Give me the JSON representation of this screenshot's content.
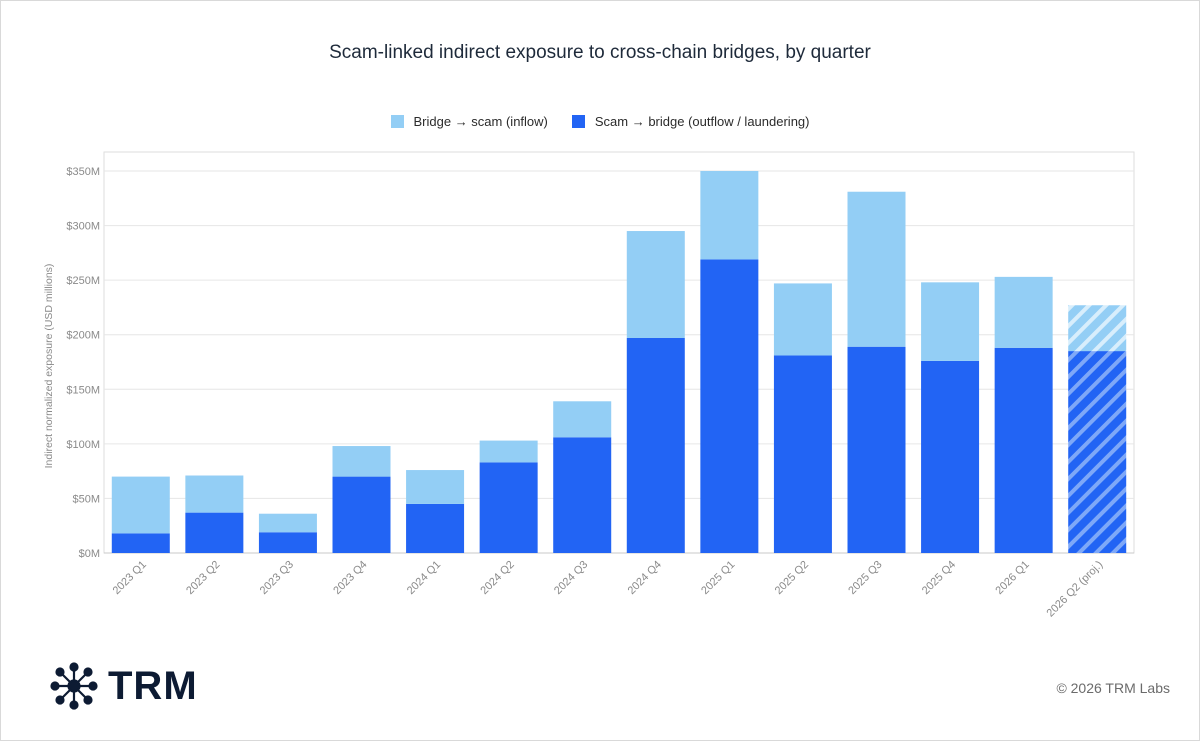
{
  "title": "Scam-linked indirect exposure to cross-chain bridges, by quarter",
  "footer": {
    "copyright": "© 2026 TRM Labs",
    "logo_text": "TRM"
  },
  "colors": {
    "inflow": "#93CEF5",
    "outflow": "#2264F4",
    "grid": "#e6e6e6",
    "axis": "#c8c8c8",
    "text": "#8a8a8a"
  },
  "chart_data": {
    "type": "bar",
    "stacked": true,
    "title": "Scam-linked indirect exposure to cross-chain bridges, by quarter",
    "xlabel": "",
    "ylabel": "Indirect normalized exposure (USD millions)",
    "ylim": [
      0,
      350
    ],
    "yticks": [
      "$0M",
      "$50M",
      "$100M",
      "$150M",
      "$200M",
      "$250M",
      "$300M",
      "$350M"
    ],
    "grid": true,
    "legend": "top-center",
    "categories": [
      "2023 Q1",
      "2023 Q2",
      "2023 Q3",
      "2023 Q4",
      "2024 Q1",
      "2024 Q2",
      "2024 Q3",
      "2024 Q4",
      "2025 Q1",
      "2025 Q2",
      "2025 Q3",
      "2025 Q4",
      "2026 Q1",
      "2026 Q2 (proj.)"
    ],
    "projected": [
      false,
      false,
      false,
      false,
      false,
      false,
      false,
      false,
      false,
      false,
      false,
      false,
      false,
      true
    ],
    "series": [
      {
        "name": "Scam → bridge (outflow / laundering)",
        "values": [
          18,
          37,
          19,
          70,
          45,
          83,
          106,
          197,
          269,
          181,
          189,
          176,
          188,
          185
        ]
      },
      {
        "name": "Bridge → scam (inflow)",
        "values": [
          52,
          34,
          17,
          28,
          31,
          20,
          33,
          98,
          81,
          66,
          142,
          72,
          65,
          42
        ]
      }
    ]
  }
}
